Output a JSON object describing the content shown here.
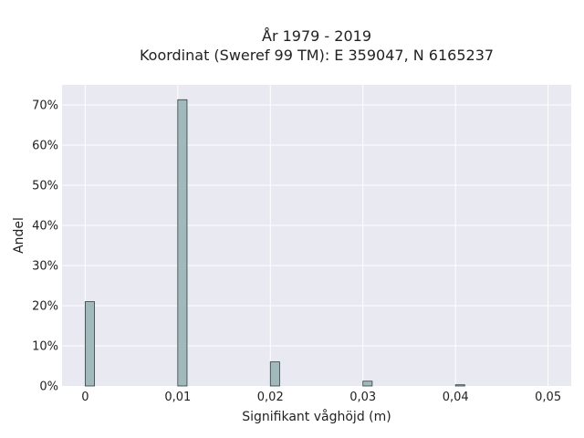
{
  "chart_data": {
    "type": "bar",
    "title_lines": [
      "År 1979 - 2019",
      "Koordinat (Sweref 99 TM): E 359047, N 6165237"
    ],
    "xlabel": "Signifikant våghöjd (m)",
    "ylabel": "Andel",
    "x": [
      0,
      0.01,
      0.02,
      0.03,
      0.04
    ],
    "values": [
      21,
      71.3,
      6,
      1.2,
      0.3
    ],
    "xlim": [
      -0.0025,
      0.0525
    ],
    "ylim": [
      0,
      75
    ],
    "x_ticks": [
      0,
      0.01,
      0.02,
      0.03,
      0.04,
      0.05
    ],
    "x_tick_labels": [
      "0",
      "0,01",
      "0,02",
      "0,03",
      "0,04",
      "0,05"
    ],
    "y_ticks": [
      0,
      10,
      20,
      30,
      40,
      50,
      60,
      70
    ],
    "y_tick_labels": [
      "0%",
      "10%",
      "20%",
      "30%",
      "40%",
      "50%",
      "60%",
      "70%"
    ],
    "grid": true,
    "colors": {
      "bar_fill": "#a2b9bc",
      "bar_stroke": "#2f3d3f",
      "plot_bg": "#e9e9f1",
      "grid": "#ffffff"
    }
  }
}
